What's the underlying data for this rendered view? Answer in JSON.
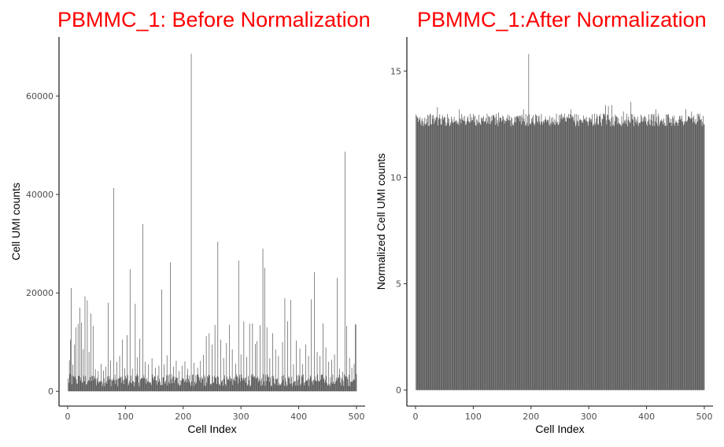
{
  "chart_data": [
    {
      "type": "bar",
      "title": "PBMMC_1: Before Normalization",
      "title_color": "#ff0000",
      "bar_color": "#4d4d4d",
      "xlabel": "Cell Index",
      "ylabel": "Cell UMI counts",
      "xlim": [
        -15,
        515
      ],
      "ylim": [
        -3000,
        72000
      ],
      "xticks": [
        0,
        100,
        200,
        300,
        400,
        500
      ],
      "yticks": [
        0,
        20000,
        40000,
        60000
      ],
      "grid": false,
      "n_cells": 500,
      "baseline_range": [
        1000,
        3500
      ],
      "peaks": [
        {
          "x": 3,
          "y": 6300
        },
        {
          "x": 5,
          "y": 10500
        },
        {
          "x": 6,
          "y": 21000
        },
        {
          "x": 9,
          "y": 5400
        },
        {
          "x": 12,
          "y": 9500
        },
        {
          "x": 14,
          "y": 13000
        },
        {
          "x": 18,
          "y": 13700
        },
        {
          "x": 21,
          "y": 17000
        },
        {
          "x": 24,
          "y": 14000
        },
        {
          "x": 27,
          "y": 8600
        },
        {
          "x": 30,
          "y": 19300
        },
        {
          "x": 34,
          "y": 18500
        },
        {
          "x": 37,
          "y": 8000
        },
        {
          "x": 40,
          "y": 15800
        },
        {
          "x": 44,
          "y": 13300
        },
        {
          "x": 48,
          "y": 4500
        },
        {
          "x": 53,
          "y": 4100
        },
        {
          "x": 58,
          "y": 5600
        },
        {
          "x": 62,
          "y": 4200
        },
        {
          "x": 66,
          "y": 5000
        },
        {
          "x": 70,
          "y": 18000
        },
        {
          "x": 74,
          "y": 6300
        },
        {
          "x": 80,
          "y": 41300
        },
        {
          "x": 85,
          "y": 6000
        },
        {
          "x": 90,
          "y": 7200
        },
        {
          "x": 95,
          "y": 10500
        },
        {
          "x": 99,
          "y": 4700
        },
        {
          "x": 103,
          "y": 11400
        },
        {
          "x": 108,
          "y": 24800
        },
        {
          "x": 112,
          "y": 4600
        },
        {
          "x": 117,
          "y": 17800
        },
        {
          "x": 121,
          "y": 6900
        },
        {
          "x": 125,
          "y": 10700
        },
        {
          "x": 130,
          "y": 34000
        },
        {
          "x": 134,
          "y": 6000
        },
        {
          "x": 140,
          "y": 5500
        },
        {
          "x": 146,
          "y": 6700
        },
        {
          "x": 152,
          "y": 4800
        },
        {
          "x": 158,
          "y": 5200
        },
        {
          "x": 163,
          "y": 20700
        },
        {
          "x": 167,
          "y": 5500
        },
        {
          "x": 172,
          "y": 7300
        },
        {
          "x": 178,
          "y": 26200
        },
        {
          "x": 183,
          "y": 5000
        },
        {
          "x": 188,
          "y": 6200
        },
        {
          "x": 193,
          "y": 4100
        },
        {
          "x": 198,
          "y": 5200
        },
        {
          "x": 203,
          "y": 6100
        },
        {
          "x": 208,
          "y": 4600
        },
        {
          "x": 214,
          "y": 68600
        },
        {
          "x": 219,
          "y": 5800
        },
        {
          "x": 225,
          "y": 4800
        },
        {
          "x": 230,
          "y": 6200
        },
        {
          "x": 235,
          "y": 7400
        },
        {
          "x": 240,
          "y": 11200
        },
        {
          "x": 245,
          "y": 11800
        },
        {
          "x": 250,
          "y": 9500
        },
        {
          "x": 255,
          "y": 13500
        },
        {
          "x": 260,
          "y": 30400
        },
        {
          "x": 265,
          "y": 10500
        },
        {
          "x": 270,
          "y": 6800
        },
        {
          "x": 275,
          "y": 9800
        },
        {
          "x": 280,
          "y": 13500
        },
        {
          "x": 285,
          "y": 8500
        },
        {
          "x": 291,
          "y": 5600
        },
        {
          "x": 296,
          "y": 26600
        },
        {
          "x": 300,
          "y": 7500
        },
        {
          "x": 305,
          "y": 14200
        },
        {
          "x": 310,
          "y": 7000
        },
        {
          "x": 315,
          "y": 13700
        },
        {
          "x": 320,
          "y": 13800
        },
        {
          "x": 325,
          "y": 9600
        },
        {
          "x": 328,
          "y": 10200
        },
        {
          "x": 333,
          "y": 13400
        },
        {
          "x": 338,
          "y": 29000
        },
        {
          "x": 341,
          "y": 25100
        },
        {
          "x": 345,
          "y": 13000
        },
        {
          "x": 350,
          "y": 6700
        },
        {
          "x": 355,
          "y": 11800
        },
        {
          "x": 360,
          "y": 8500
        },
        {
          "x": 365,
          "y": 7200
        },
        {
          "x": 372,
          "y": 10000
        },
        {
          "x": 376,
          "y": 18900
        },
        {
          "x": 381,
          "y": 14200
        },
        {
          "x": 386,
          "y": 18600
        },
        {
          "x": 391,
          "y": 5500
        },
        {
          "x": 396,
          "y": 10300
        },
        {
          "x": 402,
          "y": 8700
        },
        {
          "x": 407,
          "y": 5500
        },
        {
          "x": 412,
          "y": 9500
        },
        {
          "x": 417,
          "y": 7200
        },
        {
          "x": 422,
          "y": 18700
        },
        {
          "x": 427,
          "y": 24200
        },
        {
          "x": 432,
          "y": 8000
        },
        {
          "x": 437,
          "y": 7200
        },
        {
          "x": 442,
          "y": 13800
        },
        {
          "x": 447,
          "y": 8900
        },
        {
          "x": 452,
          "y": 6000
        },
        {
          "x": 457,
          "y": 6400
        },
        {
          "x": 462,
          "y": 7500
        },
        {
          "x": 467,
          "y": 23100
        },
        {
          "x": 471,
          "y": 4600
        },
        {
          "x": 476,
          "y": 4000
        },
        {
          "x": 480,
          "y": 48700
        },
        {
          "x": 483,
          "y": 13300
        },
        {
          "x": 488,
          "y": 6800
        },
        {
          "x": 492,
          "y": 4800
        },
        {
          "x": 496,
          "y": 5600
        },
        {
          "x": 498,
          "y": 13700
        },
        {
          "x": 499,
          "y": 13500
        },
        {
          "x": 500,
          "y": 3500
        }
      ]
    },
    {
      "type": "bar",
      "title": "PBMMC_1:After Normalization",
      "title_color": "#ff0000",
      "bar_color": "#4d4d4d",
      "xlabel": "Cell Index",
      "ylabel": "Normalized Cell UMI counts",
      "xlim": [
        -15,
        515
      ],
      "ylim": [
        -0.75,
        16.6
      ],
      "xticks": [
        0,
        100,
        200,
        300,
        400,
        500
      ],
      "yticks": [
        0,
        5,
        10,
        15
      ],
      "grid": false,
      "n_cells": 500,
      "baseline_range": [
        12.4,
        13.0
      ],
      "peaks": [
        {
          "x": 196,
          "y": 15.8
        },
        {
          "x": 329,
          "y": 13.4
        },
        {
          "x": 334,
          "y": 13.35
        },
        {
          "x": 340,
          "y": 13.4
        },
        {
          "x": 373,
          "y": 13.55
        },
        {
          "x": 38,
          "y": 13.3
        },
        {
          "x": 269,
          "y": 13.2
        },
        {
          "x": 187,
          "y": 13.2
        },
        {
          "x": 76,
          "y": 13.2
        },
        {
          "x": 144,
          "y": 13.05
        },
        {
          "x": 416,
          "y": 13.2
        },
        {
          "x": 468,
          "y": 13.2
        },
        {
          "x": 478,
          "y": 13.1
        },
        {
          "x": 360,
          "y": 13.1
        },
        {
          "x": 310,
          "y": 13.0
        }
      ]
    }
  ]
}
